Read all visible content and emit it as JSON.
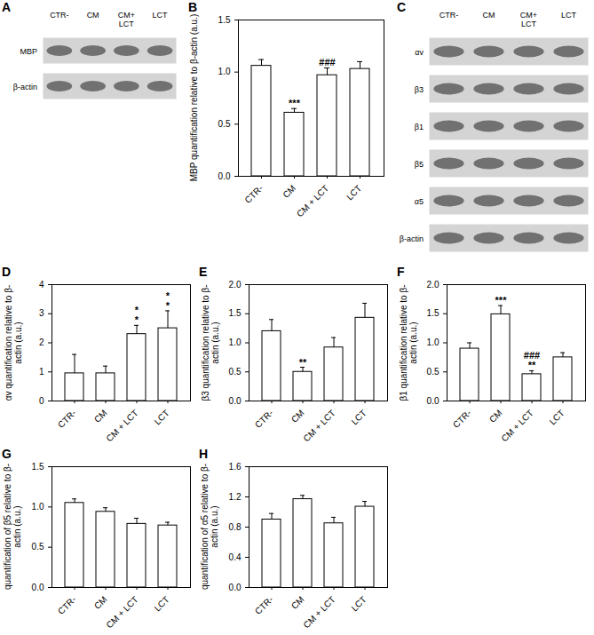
{
  "blots": [
    {
      "panel": "A",
      "lanes": [
        "CTR-",
        "CM",
        "CM+\nLCT",
        "LCT"
      ],
      "rows": [
        "MBP",
        "β-actin"
      ]
    },
    {
      "panel": "C",
      "lanes": [
        "CTR-",
        "CM",
        "CM+\nLCT",
        "LCT"
      ],
      "rows": [
        "αv",
        "β3",
        "β1",
        "β5",
        "α5",
        "β-actin"
      ]
    }
  ],
  "chart_data": [
    {
      "panel": "B",
      "type": "bar",
      "ylabel": "MBP quantification relative to β-actin (a.u.)",
      "categories": [
        "CTR-",
        "CM",
        "CM + LCT",
        "LCT"
      ],
      "values": [
        1.06,
        0.61,
        0.97,
        1.03
      ],
      "errors": [
        0.06,
        0.04,
        0.07,
        0.07
      ],
      "annotations": [
        null,
        "***",
        "###",
        null
      ],
      "color": "#ffffff",
      "ylim": [
        0,
        1.5
      ],
      "yticks": [
        {
          "value": 0,
          "label": "0.0"
        },
        0.5,
        {
          "value": 1,
          "label": "1.0"
        },
        1.5
      ]
    },
    {
      "panel": "D",
      "type": "bar",
      "ylabel": "αv quantification relative to β-actin (a.u.)",
      "categories": [
        "CTR-",
        "CM",
        "CM + LCT",
        "LCT"
      ],
      "values": [
        0.95,
        0.95,
        2.3,
        2.5
      ],
      "errors": [
        0.65,
        0.25,
        0.3,
        0.6
      ],
      "annotations": [
        null,
        null,
        "*\n*",
        "*\n*"
      ],
      "color": "#ffffff",
      "ylim": [
        0,
        4
      ],
      "yticks": [
        0,
        1,
        2,
        3,
        4
      ]
    },
    {
      "panel": "E",
      "type": "bar",
      "ylabel": "β3 quantification relative to β-actin (a.u.)",
      "categories": [
        "CTR-",
        "CM",
        "CM + LCT",
        "LCT"
      ],
      "values": [
        1.2,
        0.5,
        0.92,
        1.43
      ],
      "errors": [
        0.2,
        0.08,
        0.17,
        0.25
      ],
      "annotations": [
        null,
        "**",
        null,
        null
      ],
      "color": "#ffffff",
      "ylim": [
        0,
        2
      ],
      "yticks": [
        {
          "value": 0,
          "label": "0.0"
        },
        0.5,
        {
          "value": 1,
          "label": "1.0"
        },
        1.5,
        {
          "value": 2,
          "label": "2.0"
        }
      ]
    },
    {
      "panel": "F",
      "type": "bar",
      "ylabel": "β1 quantification relative to β-actin (a.u.)",
      "categories": [
        "CTR-",
        "CM",
        "CM + LCT",
        "LCT"
      ],
      "values": [
        0.9,
        1.49,
        0.46,
        0.75
      ],
      "errors": [
        0.1,
        0.15,
        0.06,
        0.08
      ],
      "annotations": [
        null,
        "***",
        "###\n**",
        null
      ],
      "color": "#ffffff",
      "ylim": [
        0,
        2
      ],
      "yticks": [
        {
          "value": 0,
          "label": "0.0"
        },
        0.5,
        {
          "value": 1,
          "label": "1.0"
        },
        1.5,
        {
          "value": 2,
          "label": "2.0"
        }
      ]
    },
    {
      "panel": "G",
      "type": "bar",
      "ylabel": "quantification of β5 relative to β-actin (a.u.)",
      "categories": [
        "CTR-",
        "CM",
        "CM + LCT",
        "LCT"
      ],
      "values": [
        1.05,
        0.94,
        0.79,
        0.77
      ],
      "errors": [
        0.05,
        0.05,
        0.07,
        0.04
      ],
      "color": "#ffffff",
      "ylim": [
        0,
        1.5
      ],
      "yticks": [
        {
          "value": 0,
          "label": "0.0"
        },
        0.5,
        {
          "value": 1,
          "label": "1.0"
        },
        1.5
      ]
    },
    {
      "panel": "H",
      "type": "bar",
      "ylabel": "quantification of α5 relative to β-actin (a.u.)",
      "categories": [
        "CTR-",
        "CM",
        "CM + LCT",
        "LCT"
      ],
      "values": [
        0.9,
        1.17,
        0.85,
        1.07
      ],
      "errors": [
        0.08,
        0.05,
        0.08,
        0.07
      ],
      "color": "#ffffff",
      "ylim": [
        0,
        1.6
      ],
      "yticks": [
        {
          "value": 0,
          "label": "0.0"
        },
        0.4,
        0.8,
        1.2,
        1.6
      ]
    }
  ]
}
